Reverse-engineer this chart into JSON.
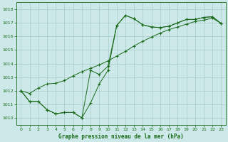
{
  "xlabel": "Graphe pression niveau de la mer (hPa)",
  "xlim": [
    -0.5,
    23.5
  ],
  "ylim": [
    1009.5,
    1018.5
  ],
  "yticks": [
    1010,
    1011,
    1012,
    1013,
    1014,
    1015,
    1016,
    1017,
    1018
  ],
  "xticks": [
    0,
    1,
    2,
    3,
    4,
    5,
    6,
    7,
    8,
    9,
    10,
    11,
    12,
    13,
    14,
    15,
    16,
    17,
    18,
    19,
    20,
    21,
    22,
    23
  ],
  "bg_color": "#cce8e8",
  "grid_color": "#aacccc",
  "line_color": "#1a6b1a",
  "line1_y": [
    1012.0,
    1011.2,
    1011.2,
    1010.6,
    1010.3,
    1010.4,
    1010.4,
    1010.0,
    1011.1,
    1012.5,
    1013.5,
    1016.8,
    1017.55,
    1017.3,
    1016.85,
    1016.7,
    1016.65,
    1016.75,
    1017.0,
    1017.25,
    1017.25,
    1017.4,
    1017.45,
    1016.95
  ],
  "line2_y": [
    1012.0,
    1011.8,
    1012.2,
    1012.5,
    1012.55,
    1012.75,
    1013.1,
    1013.4,
    1013.65,
    1013.9,
    1014.2,
    1014.55,
    1014.9,
    1015.3,
    1015.65,
    1015.95,
    1016.25,
    1016.5,
    1016.7,
    1016.9,
    1017.1,
    1017.2,
    1017.35,
    1016.95
  ],
  "line3_y": [
    1012.0,
    1011.2,
    1011.2,
    1010.6,
    1010.3,
    1010.4,
    1010.4,
    1010.0,
    1013.5,
    1013.2,
    1013.8,
    1016.8,
    1017.55,
    1017.3,
    1016.85,
    1016.7,
    1016.65,
    1016.75,
    1017.0,
    1017.25,
    1017.25,
    1017.4,
    1017.45,
    1016.95
  ]
}
